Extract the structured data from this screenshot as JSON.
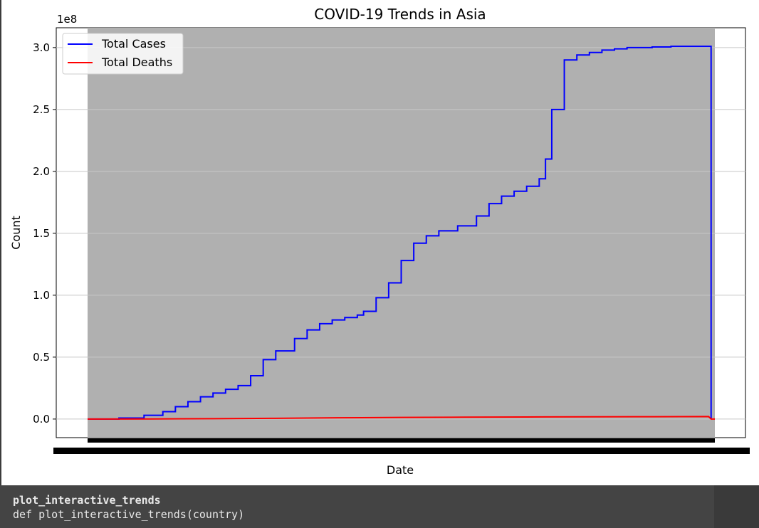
{
  "chart_data": {
    "type": "line",
    "title": "COVID-19 Trends in Asia",
    "xlabel": "Date",
    "ylabel": "Count",
    "y_offset_text": "1e8",
    "y_ticks": [
      0.0,
      0.5,
      1.0,
      1.5,
      2.0,
      2.5,
      3.0
    ],
    "y_tick_labels": [
      "0.0",
      "0.5",
      "1.0",
      "1.5",
      "2.0",
      "2.5",
      "3.0"
    ],
    "ylim": [
      -0.15,
      3.16
    ],
    "x_index_range": [
      0,
      100
    ],
    "x_tick_labels_note": "x tick labels are densely overlapped and unreadable",
    "grid": true,
    "legend_position": "upper left",
    "plot_background": "#b0b0b0",
    "series": [
      {
        "name": "Total Cases",
        "color": "#0000ff",
        "x": [
          0,
          5,
          9,
          12,
          14,
          16,
          18,
          20,
          22,
          24,
          26,
          28,
          30,
          33,
          35,
          37,
          39,
          41,
          43,
          44,
          46,
          48,
          50,
          52,
          54,
          56,
          59,
          62,
          64,
          66,
          68,
          70,
          72,
          73,
          74,
          76,
          78,
          80,
          82,
          84,
          86,
          88,
          90,
          93,
          96,
          99,
          99.4
        ],
        "values": [
          0.0,
          0.008,
          0.03,
          0.06,
          0.1,
          0.14,
          0.18,
          0.21,
          0.24,
          0.27,
          0.35,
          0.48,
          0.55,
          0.65,
          0.72,
          0.77,
          0.8,
          0.82,
          0.84,
          0.87,
          0.98,
          1.1,
          1.28,
          1.42,
          1.48,
          1.52,
          1.56,
          1.64,
          1.74,
          1.8,
          1.84,
          1.88,
          1.94,
          2.1,
          2.5,
          2.9,
          2.94,
          2.96,
          2.98,
          2.99,
          3.0,
          3.0,
          3.005,
          3.01,
          3.01,
          3.01,
          0.0
        ],
        "step": true
      },
      {
        "name": "Total Deaths",
        "color": "#ff0000",
        "x": [
          0,
          10,
          20,
          30,
          40,
          50,
          60,
          70,
          80,
          90,
          99,
          99.4,
          100
        ],
        "values": [
          0.0,
          0.001,
          0.003,
          0.006,
          0.01,
          0.013,
          0.015,
          0.017,
          0.018,
          0.019,
          0.02,
          0.0,
          0.0
        ],
        "step": false
      }
    ]
  },
  "tooltip": {
    "name": "plot_interactive_trends",
    "signature": "def plot_interactive_trends(country)"
  }
}
